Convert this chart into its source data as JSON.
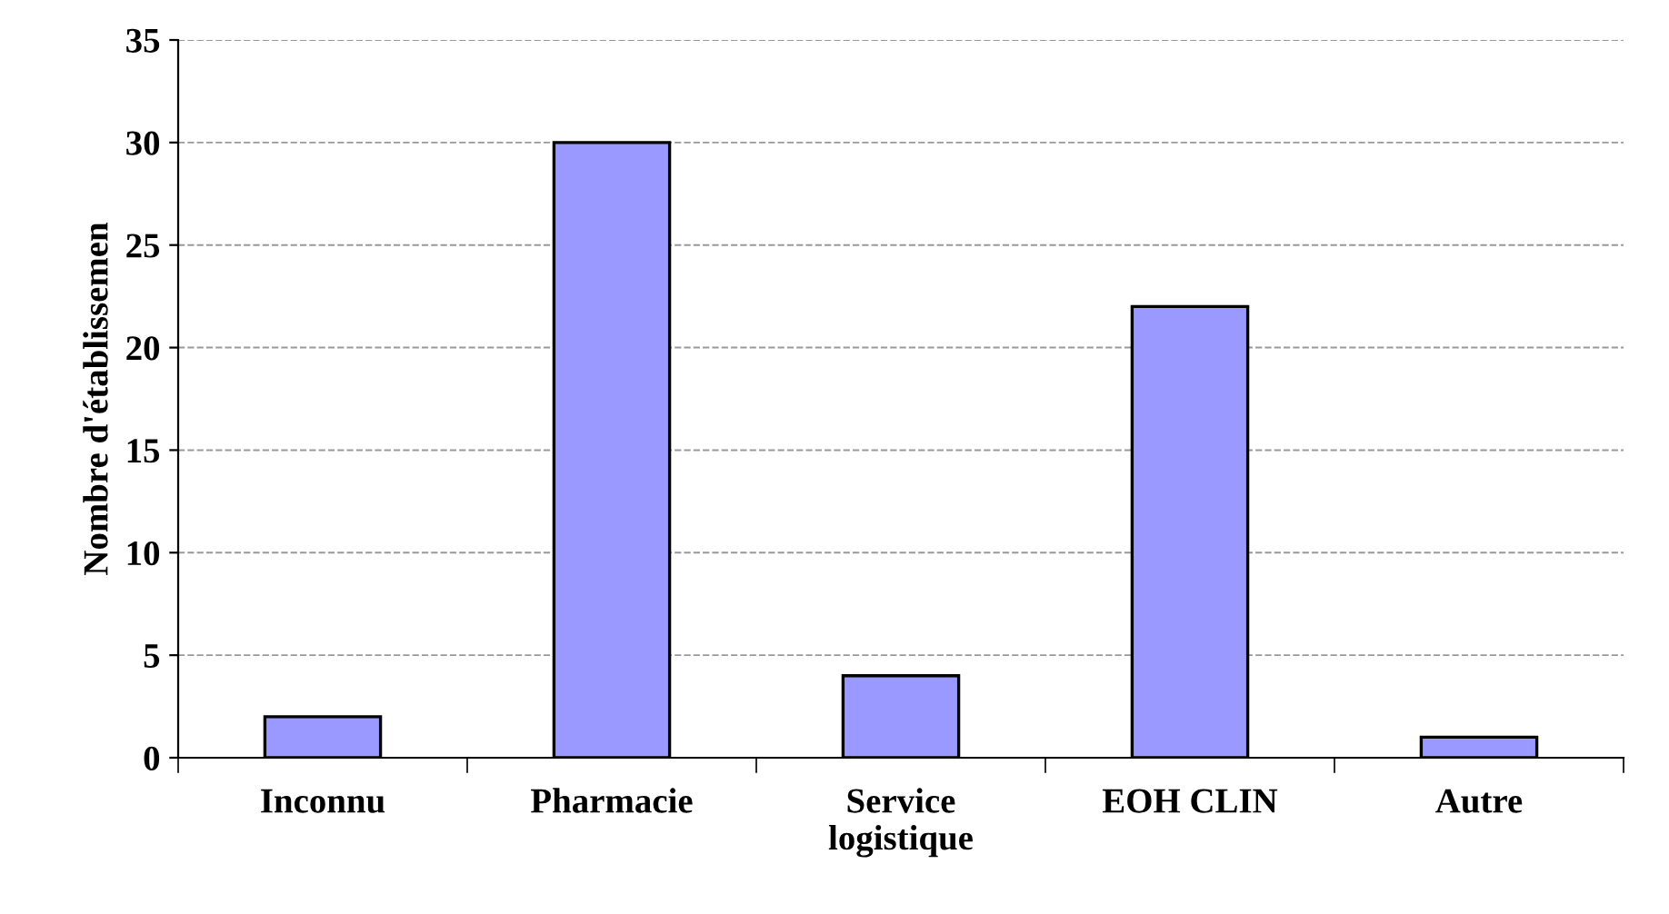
{
  "chart_data": {
    "type": "bar",
    "ylabel": "Nombre d'établissemen",
    "categories": [
      "Inconnu",
      "Pharmacie",
      "Service\nlogistique",
      "EOH CLIN",
      "Autre"
    ],
    "values": [
      2,
      30,
      4,
      22,
      1
    ],
    "color": "#9999ff",
    "ylim": [
      0,
      35
    ],
    "yticks": [
      0,
      5,
      10,
      15,
      20,
      25,
      30,
      35
    ],
    "grid": "y",
    "legend": false
  }
}
